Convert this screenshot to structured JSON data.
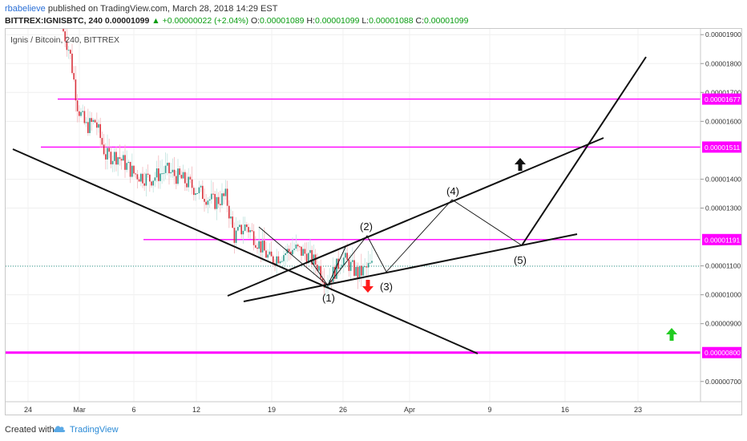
{
  "header": {
    "author": "rbabelieve",
    "published_text": "published on TradingView.com, March 28, 2018 14:29 EST",
    "symbol": "BITTREX:IGNISBTC, 240",
    "last": "0.00001099",
    "change": "+0.00000022 (+2.04%)",
    "o_label": "O:",
    "o_value": "0.00001089",
    "h_label": "H:",
    "h_value": "0.00001099",
    "l_label": "L:",
    "l_value": "0.00001088",
    "c_label": "C:",
    "c_value": "0.00001099"
  },
  "legend": "Ignis / Bitcoin, 240, BITTREX",
  "footer": {
    "created_with": "Created with",
    "brand": "TradingView"
  },
  "colors": {
    "magenta": "#ff00ff",
    "up": "#2e9b8e",
    "down": "#d9323c",
    "wave": "#111111",
    "up_arrow": "#22cc22",
    "down_arrow": "#ff1a1a"
  },
  "chart_data": {
    "type": "candlestick",
    "x_ticks": [
      "24",
      "Mar",
      "6",
      "12",
      "19",
      "26",
      "Apr",
      "9",
      "16",
      "23"
    ],
    "y_ticks": [
      "0.00001900",
      "0.00001800",
      "0.00001700",
      "0.00001600",
      "0.00001400",
      "0.00001300",
      "0.00001100",
      "0.00001000",
      "0.00000900",
      "0.00000700"
    ],
    "ylim": [
      6.3e-06,
      1.92e-05
    ],
    "levels": [
      {
        "label": "0.00001677",
        "value": 1.677e-05
      },
      {
        "label": "0.00001511",
        "value": 1.511e-05
      },
      {
        "label": "0.00001191",
        "value": 1.191e-05
      },
      {
        "label": "0.00000800",
        "value": 8e-06
      }
    ],
    "last_price": 1.099e-05,
    "wave_labels": [
      "(1)",
      "(2)",
      "(3)",
      "(4)",
      "(5)"
    ]
  }
}
